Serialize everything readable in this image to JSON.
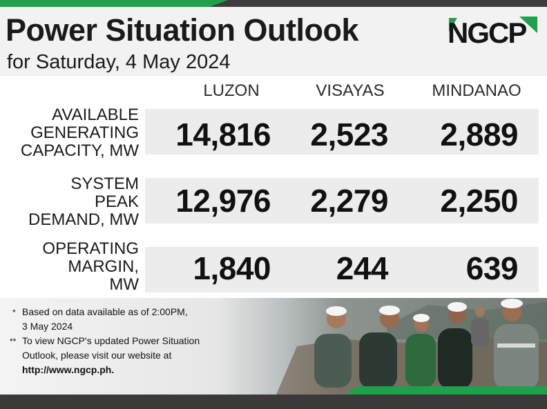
{
  "header": {
    "title": "Power Situation Outlook",
    "subtitle": "for Saturday, 4 May 2024",
    "logo_text": "NGCP"
  },
  "columns": [
    "LUZON",
    "VISAYAS",
    "MINDANAO"
  ],
  "rows": [
    {
      "label": "AVAILABLE\nGENERATING\nCAPACITY, MW",
      "values": [
        "14,816",
        "2,523",
        "2,889"
      ]
    },
    {
      "label": "SYSTEM\nPEAK\nDEMAND, MW",
      "values": [
        "12,976",
        "2,279",
        "2,250"
      ]
    },
    {
      "label": "OPERATING\nMARGIN,\nMW",
      "values": [
        "1,840",
        "244",
        "639"
      ]
    }
  ],
  "notes": {
    "note1_mark": "*",
    "note1_line1": "Based on data available as of 2:00PM,",
    "note1_line2": "3 May 2024",
    "note2_mark": "**",
    "note2_line1": "To view NGCP's updated Power Situation",
    "note2_line2": "Outlook, please visit our website at",
    "note2_line3": "http://www.ngcp.ph."
  },
  "colors": {
    "brand_green": "#1fa04a",
    "dark_bar": "#3a3a3a"
  }
}
